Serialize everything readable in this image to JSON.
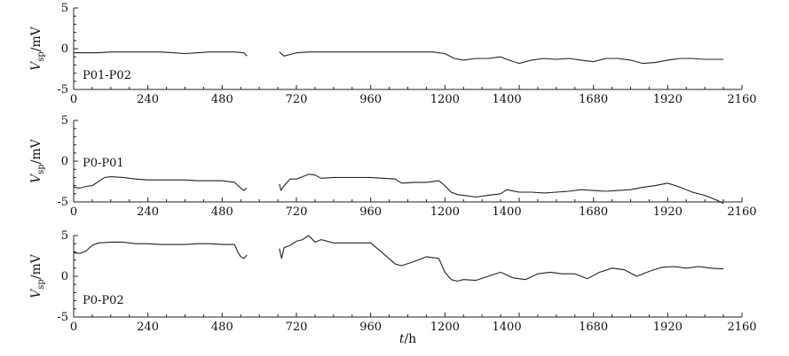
{
  "chart_data": [
    {
      "type": "line",
      "panel_label": "P01-P02",
      "ylabel": "V_sp/mV",
      "xlim": [
        0,
        2160
      ],
      "ylim": [
        -5,
        5
      ],
      "xticks": [
        0,
        240,
        480,
        720,
        960,
        1200,
        1400,
        1680,
        1920,
        2160
      ],
      "yticks": [
        -5,
        0,
        5
      ],
      "series": [
        {
          "segments": [
            {
              "x": [
                0,
                40,
                80,
                120,
                160,
                200,
                240,
                280,
                320,
                360,
                400,
                440,
                480,
                520,
                550,
                560
              ],
              "y": [
                -0.5,
                -0.5,
                -0.5,
                -0.4,
                -0.4,
                -0.4,
                -0.4,
                -0.4,
                -0.5,
                -0.6,
                -0.5,
                -0.4,
                -0.4,
                -0.4,
                -0.5,
                -0.9
              ]
            },
            {
              "x": [
                665,
                680,
                720,
                760,
                800,
                840,
                880,
                920,
                960,
                1000,
                1040,
                1080,
                1120,
                1160,
                1200,
                1230,
                1260,
                1300,
                1340,
                1380,
                1400,
                1440,
                1480,
                1520,
                1560,
                1600,
                1640,
                1680,
                1720,
                1760,
                1800,
                1840,
                1880,
                1920,
                1960,
                2000,
                2040,
                2080,
                2100
              ],
              "y": [
                -0.4,
                -0.9,
                -0.5,
                -0.4,
                -0.4,
                -0.4,
                -0.4,
                -0.4,
                -0.4,
                -0.4,
                -0.4,
                -0.4,
                -0.4,
                -0.4,
                -0.6,
                -1.2,
                -1.4,
                -1.2,
                -1.2,
                -1.0,
                -1.3,
                -1.8,
                -1.4,
                -1.2,
                -1.3,
                -1.2,
                -1.4,
                -1.6,
                -1.2,
                -1.2,
                -1.4,
                -1.8,
                -1.7,
                -1.4,
                -1.2,
                -1.2,
                -1.3,
                -1.3,
                -1.3
              ]
            }
          ]
        }
      ]
    },
    {
      "type": "line",
      "panel_label": "P0-P01",
      "ylabel": "V_sp/mV",
      "xlim": [
        0,
        2160
      ],
      "ylim": [
        -5,
        5
      ],
      "xticks": [
        0,
        240,
        480,
        720,
        960,
        1200,
        1400,
        1680,
        1920,
        2160
      ],
      "yticks": [
        -5,
        0,
        5
      ],
      "series": [
        {
          "segments": [
            {
              "x": [
                0,
                20,
                40,
                60,
                80,
                100,
                120,
                160,
                200,
                240,
                280,
                320,
                360,
                400,
                440,
                480,
                520,
                540,
                550,
                560
              ],
              "y": [
                -3.2,
                -3.3,
                -3.1,
                -3.0,
                -2.5,
                -2.0,
                -1.9,
                -2.0,
                -2.2,
                -2.3,
                -2.3,
                -2.3,
                -2.3,
                -2.4,
                -2.4,
                -2.4,
                -2.6,
                -3.3,
                -3.6,
                -3.3
              ]
            },
            {
              "x": [
                665,
                670,
                680,
                700,
                720,
                740,
                760,
                780,
                800,
                840,
                880,
                920,
                960,
                1000,
                1040,
                1060,
                1100,
                1140,
                1180,
                1200,
                1220,
                1240,
                1260,
                1300,
                1340,
                1380,
                1400,
                1440,
                1480,
                1520,
                1560,
                1600,
                1640,
                1680,
                1720,
                1760,
                1800,
                1840,
                1880,
                1920,
                1960,
                2000,
                2040,
                2080,
                2100
              ],
              "y": [
                -2.8,
                -3.6,
                -3.0,
                -2.2,
                -2.2,
                -1.9,
                -1.6,
                -1.7,
                -2.1,
                -2.0,
                -2.0,
                -2.0,
                -2.0,
                -2.1,
                -2.2,
                -2.7,
                -2.6,
                -2.6,
                -2.4,
                -3.0,
                -3.8,
                -4.1,
                -4.2,
                -4.4,
                -4.2,
                -4.0,
                -3.5,
                -3.8,
                -3.8,
                -3.9,
                -3.8,
                -3.7,
                -3.5,
                -3.6,
                -3.7,
                -3.6,
                -3.5,
                -3.2,
                -3.0,
                -2.7,
                -3.2,
                -3.8,
                -4.2,
                -4.8,
                -5.2
              ]
            }
          ]
        }
      ]
    },
    {
      "type": "line",
      "panel_label": "P0-P02",
      "ylabel": "V_sp/mV",
      "xlabel": "t/h",
      "xlim": [
        0,
        2160
      ],
      "ylim": [
        -5,
        5
      ],
      "xticks": [
        0,
        240,
        480,
        720,
        960,
        1200,
        1400,
        1680,
        1920,
        2160
      ],
      "yticks": [
        -5,
        0,
        5
      ],
      "series": [
        {
          "segments": [
            {
              "x": [
                0,
                20,
                40,
                60,
                80,
                120,
                160,
                200,
                240,
                280,
                320,
                360,
                400,
                440,
                480,
                520,
                530,
                540,
                550,
                560
              ],
              "y": [
                2.9,
                2.8,
                3.1,
                3.8,
                4.1,
                4.2,
                4.2,
                4.0,
                4.0,
                3.9,
                3.9,
                3.9,
                4.0,
                4.0,
                3.9,
                3.9,
                3.0,
                2.4,
                2.2,
                2.6
              ]
            },
            {
              "x": [
                665,
                672,
                680,
                700,
                720,
                740,
                760,
                780,
                800,
                840,
                880,
                920,
                960,
                1000,
                1040,
                1060,
                1100,
                1140,
                1180,
                1200,
                1220,
                1240,
                1260,
                1300,
                1340,
                1380,
                1420,
                1460,
                1500,
                1540,
                1580,
                1620,
                1660,
                1700,
                1740,
                1780,
                1820,
                1860,
                1900,
                1940,
                1980,
                2020,
                2060,
                2100
              ],
              "y": [
                3.4,
                2.2,
                3.5,
                3.8,
                4.3,
                4.5,
                5.0,
                4.2,
                4.5,
                4.1,
                4.1,
                4.1,
                4.1,
                2.8,
                1.5,
                1.3,
                1.8,
                2.4,
                2.2,
                0.5,
                -0.4,
                -0.6,
                -0.4,
                -0.5,
                0.0,
                0.5,
                -0.2,
                -0.4,
                0.3,
                0.5,
                0.3,
                0.3,
                -0.3,
                0.5,
                1.0,
                0.8,
                0.0,
                0.6,
                1.1,
                1.2,
                1.0,
                1.2,
                1.0,
                0.9
              ]
            }
          ]
        }
      ]
    }
  ]
}
